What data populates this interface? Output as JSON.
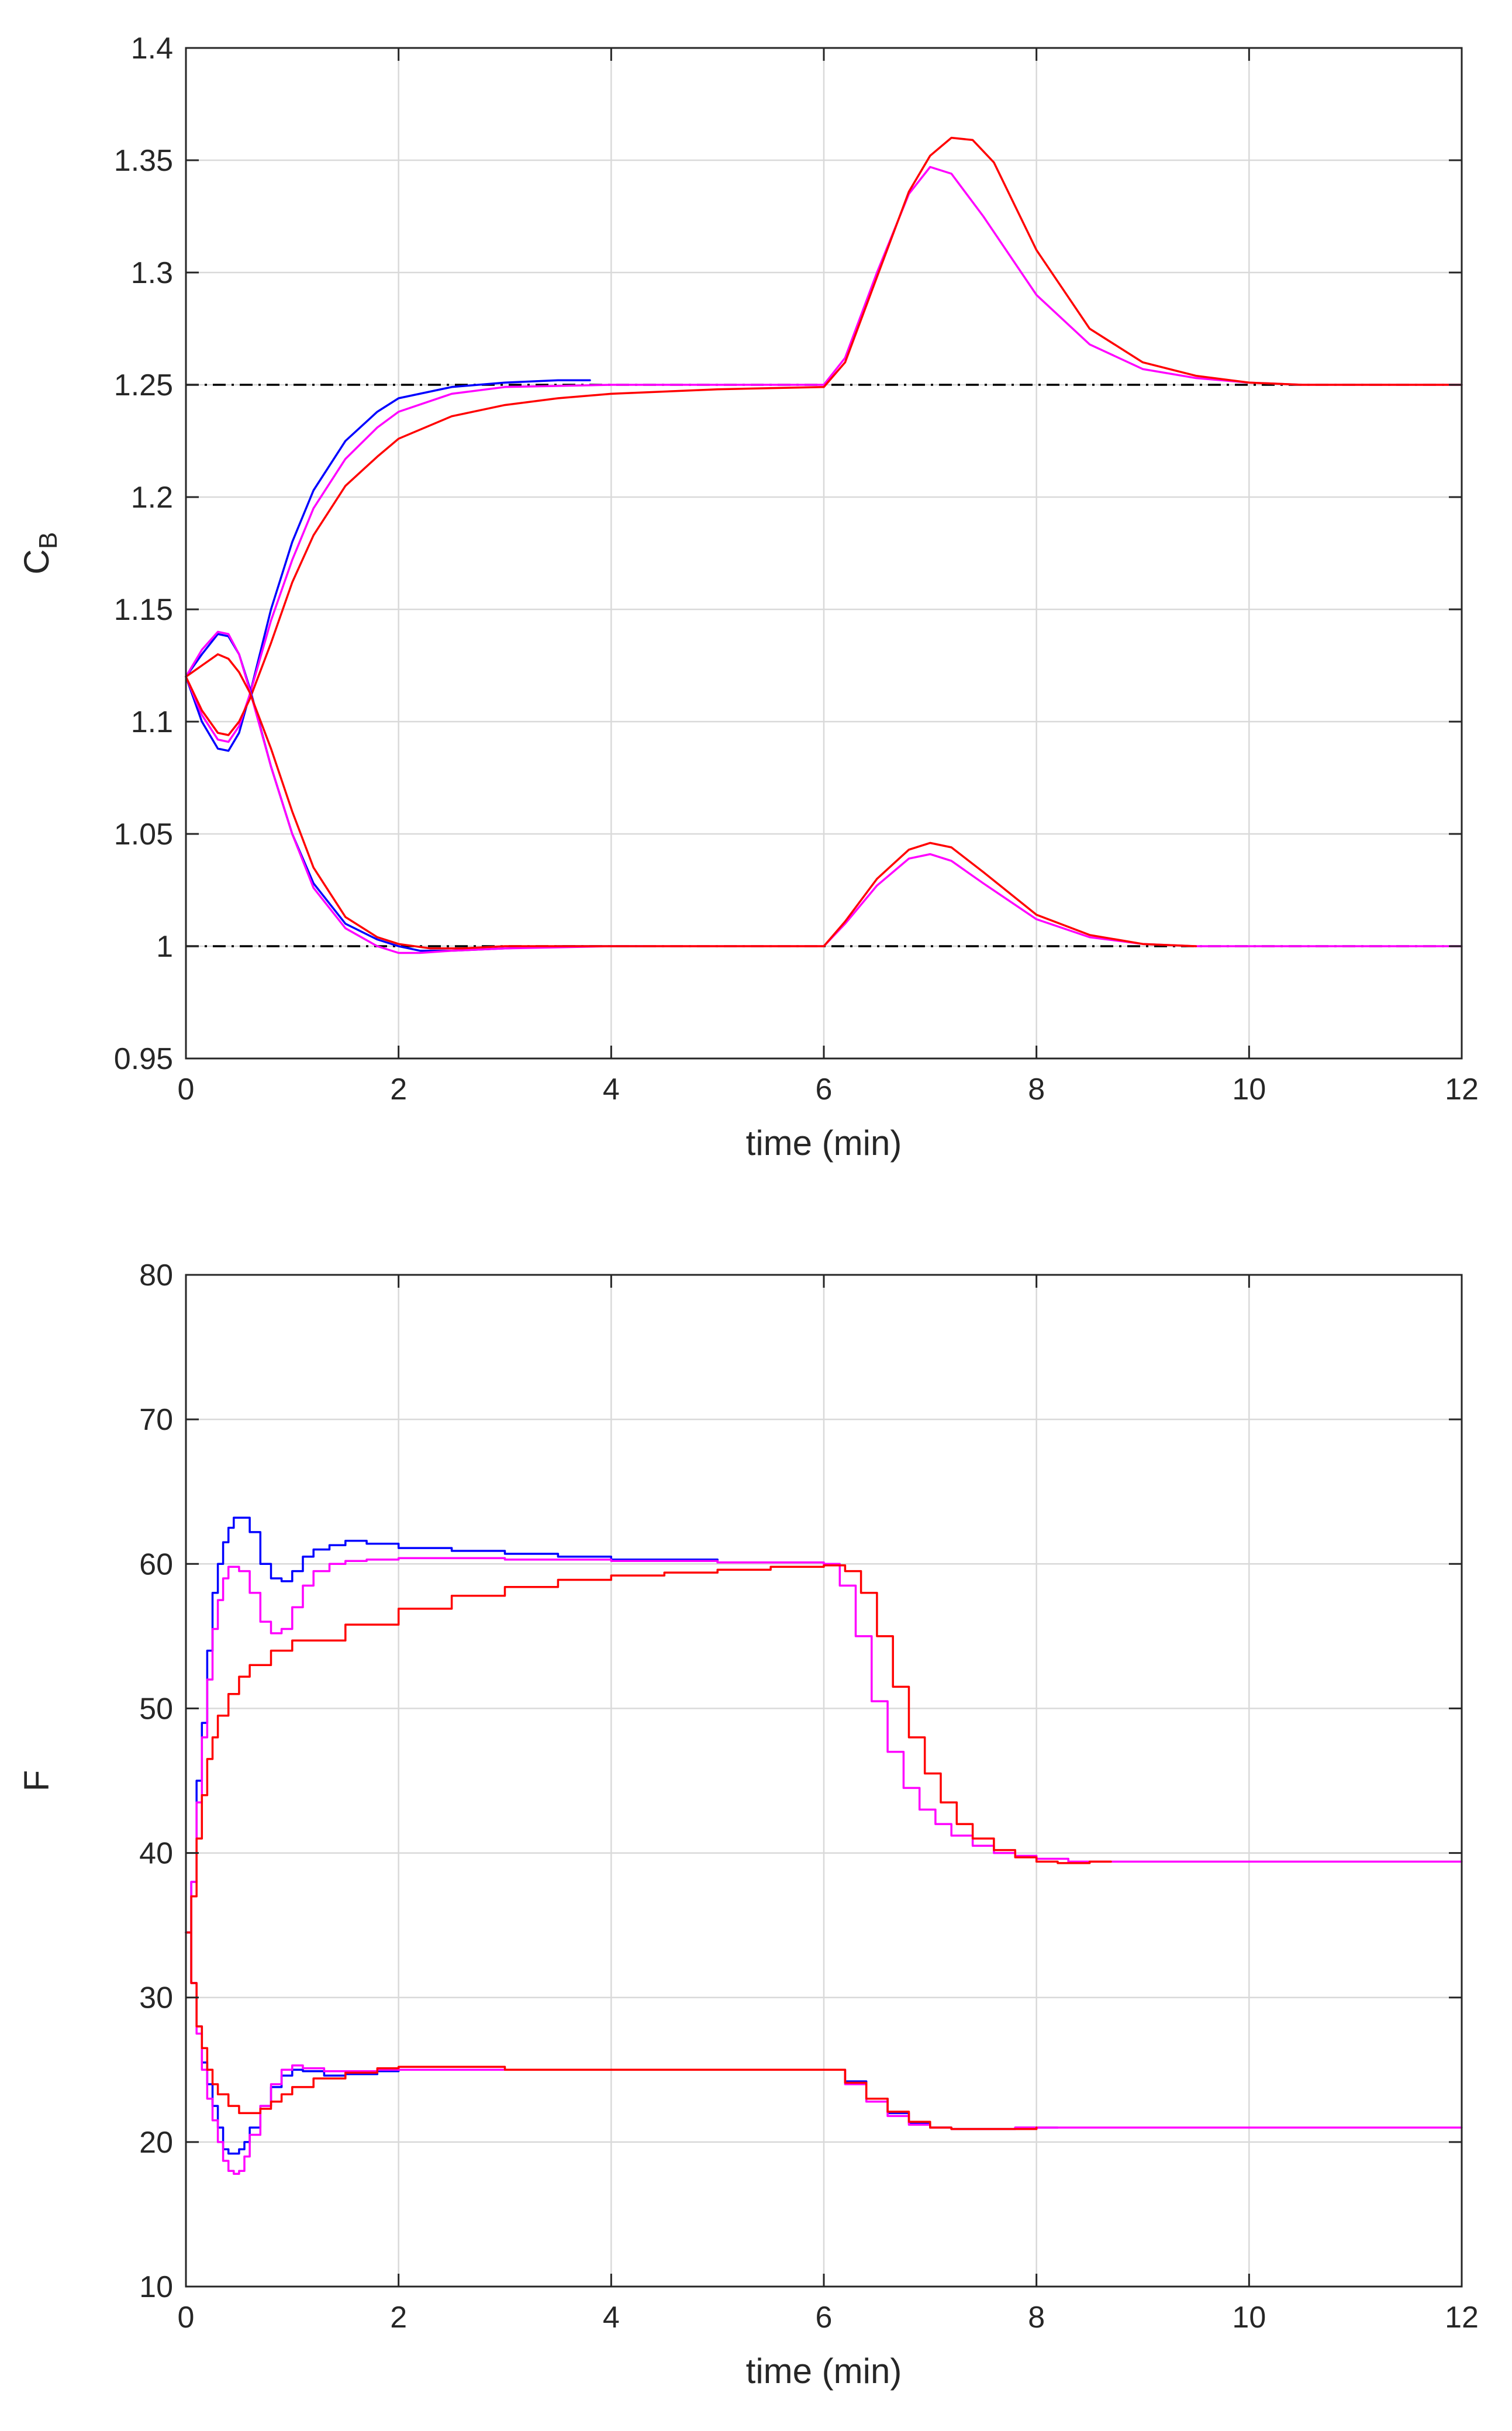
{
  "chart_data": [
    {
      "type": "line",
      "xlabel": "time (min)",
      "ylabel": "C",
      "ylabel_subscript": "B",
      "xlim": [
        0,
        12
      ],
      "ylim": [
        0.95,
        1.4
      ],
      "xticks": [
        0,
        2,
        4,
        6,
        8,
        10,
        12
      ],
      "yticks": [
        0.95,
        1,
        1.05,
        1.1,
        1.15,
        1.2,
        1.25,
        1.3,
        1.35,
        1.4
      ],
      "xtick_labels": [
        "0",
        "2",
        "4",
        "6",
        "8",
        "10",
        "12"
      ],
      "ytick_labels": [
        "0.95",
        "1",
        "1.05",
        "1.1",
        "1.15",
        "1.2",
        "1.25",
        "1.3",
        "1.35",
        "1.4"
      ],
      "grid": true,
      "reference_lines": [
        {
          "name": "setpoint-high",
          "y": 1.25,
          "style": "dash-dot",
          "color": "#000000"
        },
        {
          "name": "setpoint-low",
          "y": 1.0,
          "style": "dash-dot",
          "color": "#000000"
        }
      ],
      "series": [
        {
          "name": "blue-upper",
          "color": "#0000ff",
          "step": false,
          "x": [
            0,
            0.15,
            0.3,
            0.4,
            0.5,
            0.6,
            0.8,
            1.0,
            1.2,
            1.5,
            1.8,
            2.0,
            2.5,
            3.0,
            3.5,
            3.8
          ],
          "y": [
            1.12,
            1.1,
            1.088,
            1.087,
            1.095,
            1.112,
            1.15,
            1.18,
            1.203,
            1.225,
            1.238,
            1.244,
            1.249,
            1.251,
            1.252,
            1.252
          ]
        },
        {
          "name": "magenta-upper",
          "color": "#ff00ff",
          "step": false,
          "x": [
            0,
            0.15,
            0.3,
            0.4,
            0.5,
            0.6,
            0.8,
            1.0,
            1.2,
            1.5,
            1.8,
            2.0,
            2.5,
            3.0,
            4.0,
            5.0,
            6.0,
            6.2,
            6.5,
            6.8,
            7.0,
            7.2,
            7.5,
            8.0,
            8.5,
            9.0,
            9.5,
            10.0,
            10.5,
            11.0,
            12.0
          ],
          "y": [
            1.12,
            1.103,
            1.092,
            1.091,
            1.098,
            1.112,
            1.145,
            1.172,
            1.195,
            1.217,
            1.231,
            1.238,
            1.246,
            1.249,
            1.25,
            1.25,
            1.25,
            1.262,
            1.3,
            1.335,
            1.347,
            1.344,
            1.325,
            1.29,
            1.268,
            1.257,
            1.253,
            1.251,
            1.25,
            1.25,
            1.25
          ]
        },
        {
          "name": "red-upper",
          "color": "#ff0000",
          "step": false,
          "x": [
            0,
            0.15,
            0.3,
            0.4,
            0.5,
            0.6,
            0.8,
            1.0,
            1.2,
            1.5,
            1.8,
            2.0,
            2.5,
            3.0,
            3.5,
            4.0,
            5.0,
            6.0,
            6.2,
            6.5,
            6.8,
            7.0,
            7.2,
            7.4,
            7.6,
            8.0,
            8.5,
            9.0,
            9.5,
            10.0,
            10.5,
            11.0,
            12.0
          ],
          "y": [
            1.12,
            1.105,
            1.095,
            1.094,
            1.1,
            1.11,
            1.135,
            1.162,
            1.183,
            1.205,
            1.218,
            1.226,
            1.236,
            1.241,
            1.244,
            1.246,
            1.248,
            1.249,
            1.26,
            1.298,
            1.336,
            1.352,
            1.36,
            1.359,
            1.349,
            1.31,
            1.275,
            1.26,
            1.254,
            1.251,
            1.25,
            1.25,
            1.25
          ]
        },
        {
          "name": "blue-lower",
          "color": "#0000ff",
          "step": false,
          "x": [
            0,
            0.15,
            0.3,
            0.4,
            0.5,
            0.6,
            0.8,
            1.0,
            1.2,
            1.5,
            1.8,
            2.0,
            2.2,
            2.5,
            3.0,
            3.5,
            4.0,
            4.3
          ],
          "y": [
            1.12,
            1.13,
            1.139,
            1.138,
            1.13,
            1.115,
            1.08,
            1.05,
            1.028,
            1.01,
            1.003,
            1.0,
            0.998,
            0.998,
            0.999,
            1.0,
            1.0,
            1.0
          ]
        },
        {
          "name": "magenta-lower",
          "color": "#ff00ff",
          "step": false,
          "x": [
            0,
            0.15,
            0.3,
            0.4,
            0.5,
            0.6,
            0.8,
            1.0,
            1.2,
            1.5,
            1.8,
            2.0,
            2.2,
            2.5,
            3.0,
            4.0,
            5.0,
            6.0,
            6.2,
            6.5,
            6.8,
            7.0,
            7.2,
            7.5,
            8.0,
            8.5,
            9.0,
            9.5,
            10.0,
            12.0
          ],
          "y": [
            1.12,
            1.132,
            1.14,
            1.139,
            1.13,
            1.114,
            1.08,
            1.05,
            1.026,
            1.008,
            1.0,
            0.997,
            0.997,
            0.998,
            0.999,
            1.0,
            1.0,
            1.0,
            1.01,
            1.027,
            1.039,
            1.041,
            1.038,
            1.028,
            1.012,
            1.004,
            1.001,
            1.0,
            1.0,
            1.0
          ]
        },
        {
          "name": "red-lower",
          "color": "#ff0000",
          "step": false,
          "x": [
            0,
            0.15,
            0.3,
            0.4,
            0.5,
            0.6,
            0.8,
            1.0,
            1.2,
            1.5,
            1.8,
            2.0,
            2.3,
            2.6,
            3.0,
            4.0,
            5.0,
            6.0,
            6.2,
            6.5,
            6.8,
            7.0,
            7.2,
            7.5,
            8.0,
            8.5,
            9.0,
            9.5
          ],
          "y": [
            1.12,
            1.125,
            1.13,
            1.128,
            1.122,
            1.113,
            1.088,
            1.06,
            1.035,
            1.013,
            1.004,
            1.001,
            0.999,
            0.999,
            1.0,
            1.0,
            1.0,
            1.0,
            1.011,
            1.03,
            1.043,
            1.046,
            1.044,
            1.033,
            1.014,
            1.005,
            1.001,
            1.0
          ]
        }
      ]
    },
    {
      "type": "line",
      "xlabel": "time (min)",
      "ylabel": "F",
      "xlim": [
        0,
        12
      ],
      "ylim": [
        10,
        80
      ],
      "xticks": [
        0,
        2,
        4,
        6,
        8,
        10,
        12
      ],
      "yticks": [
        10,
        20,
        30,
        40,
        50,
        60,
        70,
        80
      ],
      "xtick_labels": [
        "0",
        "2",
        "4",
        "6",
        "8",
        "10",
        "12"
      ],
      "ytick_labels": [
        "10",
        "20",
        "30",
        "40",
        "50",
        "60",
        "70",
        "80"
      ],
      "grid": true,
      "series": [
        {
          "name": "blue-upper",
          "color": "#0000ff",
          "step": true,
          "x": [
            0,
            0.05,
            0.1,
            0.15,
            0.2,
            0.25,
            0.3,
            0.35,
            0.4,
            0.45,
            0.5,
            0.6,
            0.7,
            0.8,
            0.9,
            1.0,
            1.1,
            1.2,
            1.35,
            1.5,
            1.7,
            2.0,
            2.5,
            3.0,
            3.5,
            4.0,
            5.0,
            5.3
          ],
          "y": [
            34.5,
            38,
            45,
            49,
            54,
            58,
            60,
            61.5,
            62.5,
            63.2,
            63.2,
            62.2,
            60,
            59,
            58.8,
            59.5,
            60.5,
            61,
            61.3,
            61.6,
            61.4,
            61.1,
            60.9,
            60.7,
            60.5,
            60.3,
            60.1,
            60.1
          ]
        },
        {
          "name": "magenta-upper",
          "color": "#ff00ff",
          "step": true,
          "x": [
            0,
            0.05,
            0.1,
            0.15,
            0.2,
            0.25,
            0.3,
            0.35,
            0.4,
            0.5,
            0.6,
            0.7,
            0.8,
            0.9,
            1.0,
            1.1,
            1.2,
            1.35,
            1.5,
            1.7,
            2.0,
            2.5,
            3.0,
            4.0,
            5.0,
            6.0,
            6.15,
            6.3,
            6.45,
            6.6,
            6.75,
            6.9,
            7.05,
            7.2,
            7.4,
            7.6,
            7.8,
            8.0,
            8.3,
            8.6,
            9.0,
            12.0
          ],
          "y": [
            34.5,
            38,
            43.5,
            48,
            52,
            55.5,
            57.5,
            59,
            59.8,
            59.5,
            58,
            56,
            55.2,
            55.5,
            57,
            58.5,
            59.5,
            60,
            60.2,
            60.3,
            60.4,
            60.4,
            60.3,
            60.2,
            60.1,
            60,
            58.5,
            55,
            50.5,
            47,
            44.5,
            43,
            42,
            41.2,
            40.5,
            40,
            39.8,
            39.6,
            39.4,
            39.4,
            39.4,
            39.4
          ]
        },
        {
          "name": "red-upper",
          "color": "#ff0000",
          "step": true,
          "x": [
            0,
            0.05,
            0.1,
            0.15,
            0.2,
            0.25,
            0.3,
            0.4,
            0.5,
            0.6,
            0.8,
            1.0,
            1.5,
            2.0,
            2.5,
            3.0,
            3.5,
            4.0,
            4.5,
            5.0,
            5.5,
            6.0,
            6.2,
            6.35,
            6.5,
            6.65,
            6.8,
            6.95,
            7.1,
            7.25,
            7.4,
            7.6,
            7.8,
            8.0,
            8.2,
            8.5,
            8.7
          ],
          "y": [
            34.5,
            37,
            41,
            44,
            46.5,
            48,
            49.5,
            51,
            52.2,
            53,
            54,
            54.7,
            55.8,
            56.9,
            57.8,
            58.4,
            58.9,
            59.2,
            59.4,
            59.6,
            59.8,
            59.9,
            59.5,
            58,
            55,
            51.5,
            48,
            45.5,
            43.5,
            42,
            41,
            40.2,
            39.7,
            39.4,
            39.3,
            39.4,
            39.4
          ]
        },
        {
          "name": "blue-lower",
          "color": "#0000ff",
          "step": true,
          "x": [
            0,
            0.05,
            0.1,
            0.15,
            0.2,
            0.25,
            0.3,
            0.35,
            0.4,
            0.45,
            0.5,
            0.55,
            0.6,
            0.7,
            0.8,
            0.9,
            1.0,
            1.1,
            1.3,
            1.5,
            1.8,
            2.0,
            3.0,
            4.0,
            5.0,
            6.0,
            6.2,
            6.4,
            6.6,
            6.8,
            7.0,
            7.2,
            7.5,
            7.8,
            8.0,
            8.2
          ],
          "y": [
            34.5,
            31,
            28,
            25.5,
            24,
            22.5,
            21,
            19.5,
            19.2,
            19.2,
            19.5,
            20,
            21,
            22.5,
            23.8,
            24.6,
            25,
            24.9,
            24.6,
            24.7,
            24.9,
            25,
            25,
            25,
            25,
            25,
            24.2,
            23,
            22,
            21.3,
            21,
            20.9,
            20.9,
            21,
            21,
            21
          ]
        },
        {
          "name": "magenta-lower",
          "color": "#ff00ff",
          "step": true,
          "x": [
            0,
            0.05,
            0.1,
            0.15,
            0.2,
            0.25,
            0.3,
            0.35,
            0.4,
            0.45,
            0.5,
            0.55,
            0.6,
            0.7,
            0.8,
            0.9,
            1.0,
            1.1,
            1.3,
            1.5,
            1.8,
            2.0,
            3.0,
            4.0,
            5.0,
            6.0,
            6.2,
            6.4,
            6.6,
            6.8,
            7.0,
            7.2,
            7.5,
            7.8,
            8.0,
            9.0,
            10.0,
            12.0
          ],
          "y": [
            34.5,
            31,
            27.5,
            25,
            23,
            21.5,
            20,
            18.7,
            18,
            17.8,
            18,
            19,
            20.5,
            22.5,
            24,
            25,
            25.3,
            25.1,
            24.9,
            24.9,
            25,
            25,
            25,
            25,
            25,
            25,
            24,
            22.8,
            21.8,
            21.2,
            21,
            20.9,
            20.9,
            21,
            21,
            21,
            21,
            21
          ]
        },
        {
          "name": "red-lower",
          "color": "#ff0000",
          "step": true,
          "x": [
            0,
            0.05,
            0.1,
            0.15,
            0.2,
            0.25,
            0.3,
            0.4,
            0.5,
            0.6,
            0.7,
            0.8,
            0.9,
            1.0,
            1.2,
            1.5,
            1.8,
            2.0,
            3.0,
            4.0,
            5.0,
            6.0,
            6.2,
            6.4,
            6.6,
            6.8,
            7.0,
            7.2,
            7.5,
            7.8,
            8.0
          ],
          "y": [
            34.5,
            31,
            28,
            26.5,
            25,
            24,
            23.3,
            22.5,
            22,
            22,
            22.3,
            22.8,
            23.3,
            23.8,
            24.4,
            24.8,
            25.1,
            25.2,
            25,
            25,
            25,
            25,
            24.1,
            23,
            22.1,
            21.4,
            21,
            20.9,
            20.9,
            20.9,
            21
          ]
        }
      ]
    }
  ]
}
